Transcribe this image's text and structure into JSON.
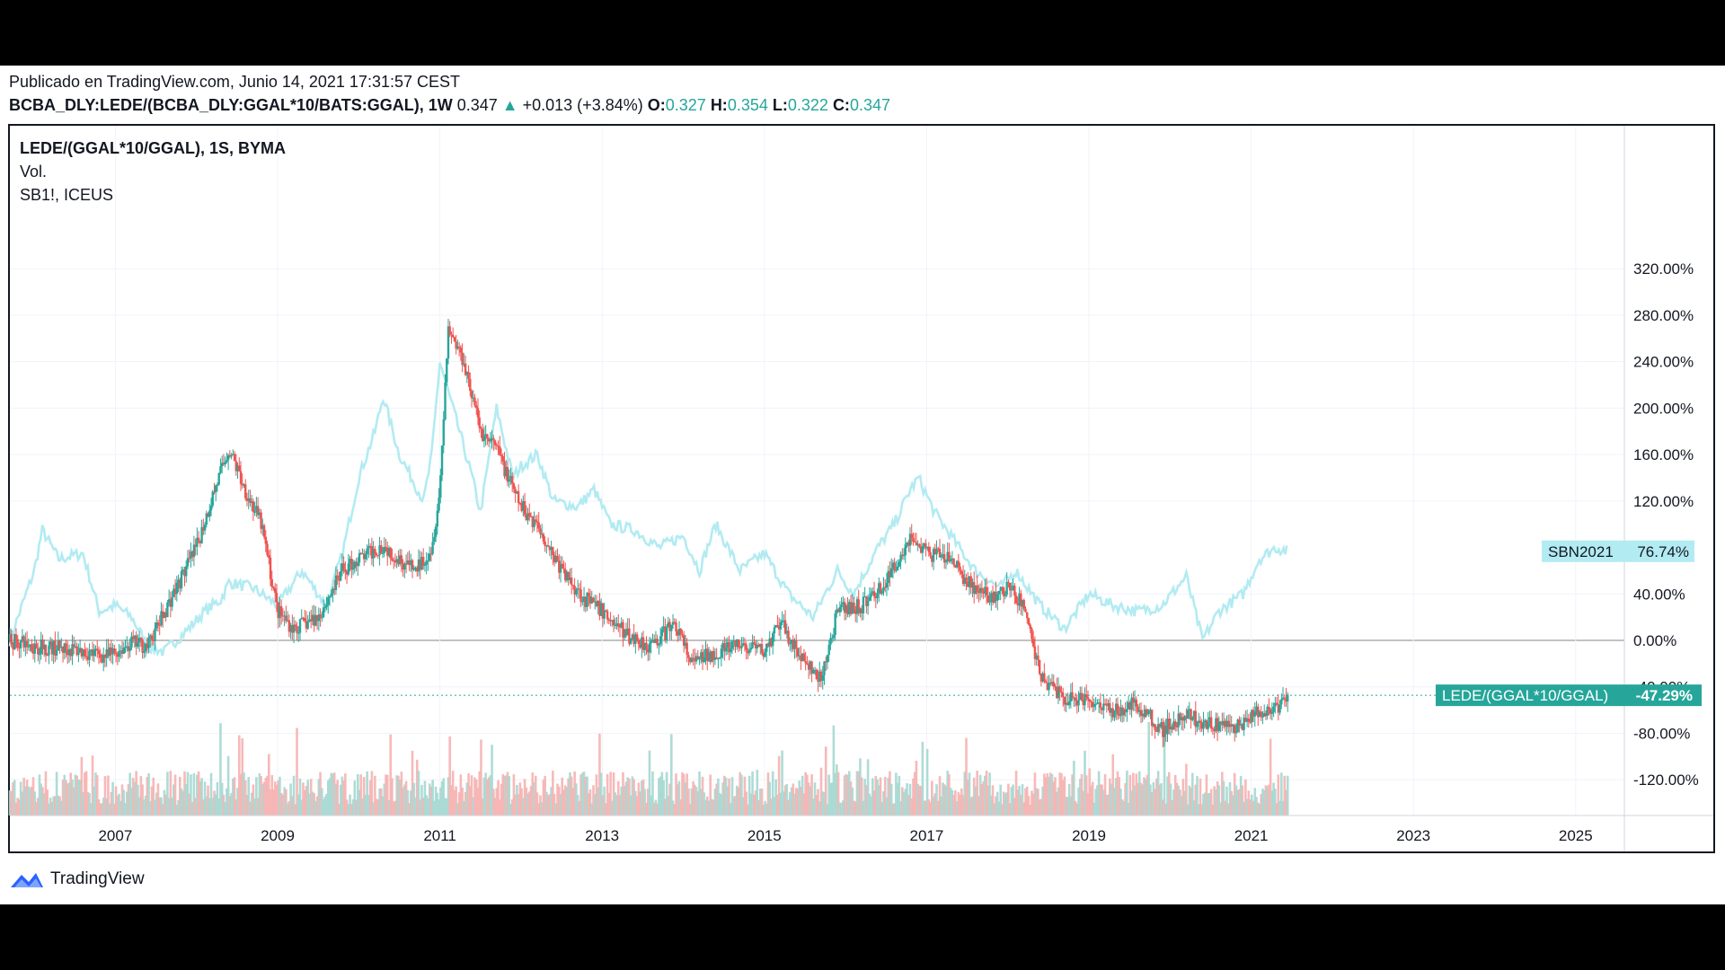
{
  "header": {
    "published": "Publicado en TradingView.com, Junio 14, 2021 17:31:57 CEST",
    "symbol": "BCBA_DLY:LEDE/(BCBA_DLY:GGAL*10/BATS:GGAL), 1W",
    "last": "0.347",
    "change": "+0.013 (+3.84%)",
    "o_label": "O:",
    "o": "0.327",
    "h_label": "H:",
    "h": "0.354",
    "l_label": "L:",
    "l": "0.322",
    "c_label": "C:",
    "c": "0.347"
  },
  "legend": {
    "line1": "LEDE/(GGAL*10/GGAL), 1S, BYMA",
    "line2": "Vol.",
    "line3": "SB1!, ICEUS"
  },
  "footer": {
    "brand": "TradingView"
  },
  "colors": {
    "up": "#26a69a",
    "down": "#ef5350",
    "compare": "#b2ebf2"
  },
  "chart_data": {
    "type": "line",
    "xlabel": "",
    "ylabel": "",
    "x_ticks": [
      "2007",
      "2009",
      "2011",
      "2013",
      "2015",
      "2017",
      "2019",
      "2021",
      "2023",
      "2025"
    ],
    "y_ticks": [
      "320.00%",
      "280.00%",
      "240.00%",
      "200.00%",
      "160.00%",
      "120.00%",
      "40.00%",
      "0.00%",
      "-40.00%",
      "-80.00%",
      "-120.00%"
    ],
    "ylim": [
      -120,
      330
    ],
    "xlim": [
      2005.7,
      2025.6
    ],
    "series": [
      {
        "name": "LEDE/(GGAL*10/GGAL)",
        "style": "candlestick",
        "last_label": "-47.29%",
        "points": [
          [
            2005.7,
            0
          ],
          [
            2006.0,
            -5
          ],
          [
            2006.5,
            -8
          ],
          [
            2006.9,
            -14
          ],
          [
            2007.2,
            -2
          ],
          [
            2007.4,
            -5
          ],
          [
            2007.7,
            38
          ],
          [
            2008.0,
            80
          ],
          [
            2008.2,
            125
          ],
          [
            2008.4,
            165
          ],
          [
            2008.6,
            130
          ],
          [
            2008.8,
            100
          ],
          [
            2009.0,
            25
          ],
          [
            2009.2,
            10
          ],
          [
            2009.5,
            20
          ],
          [
            2009.8,
            60
          ],
          [
            2010.0,
            70
          ],
          [
            2010.3,
            82
          ],
          [
            2010.5,
            70
          ],
          [
            2010.7,
            60
          ],
          [
            2010.9,
            80
          ],
          [
            2011.0,
            130
          ],
          [
            2011.1,
            270
          ],
          [
            2011.3,
            240
          ],
          [
            2011.5,
            180
          ],
          [
            2011.7,
            165
          ],
          [
            2011.9,
            130
          ],
          [
            2012.0,
            115
          ],
          [
            2012.2,
            100
          ],
          [
            2012.5,
            60
          ],
          [
            2012.8,
            35
          ],
          [
            2013.0,
            25
          ],
          [
            2013.3,
            5
          ],
          [
            2013.6,
            -5
          ],
          [
            2013.9,
            15
          ],
          [
            2014.1,
            -20
          ],
          [
            2014.4,
            -10
          ],
          [
            2014.7,
            -5
          ],
          [
            2015.0,
            -10
          ],
          [
            2015.2,
            15
          ],
          [
            2015.5,
            -20
          ],
          [
            2015.7,
            -35
          ],
          [
            2015.9,
            25
          ],
          [
            2016.2,
            30
          ],
          [
            2016.5,
            50
          ],
          [
            2016.8,
            90
          ],
          [
            2017.0,
            75
          ],
          [
            2017.3,
            70
          ],
          [
            2017.5,
            50
          ],
          [
            2017.8,
            35
          ],
          [
            2018.0,
            45
          ],
          [
            2018.2,
            30
          ],
          [
            2018.4,
            -30
          ],
          [
            2018.7,
            -50
          ],
          [
            2019.0,
            -50
          ],
          [
            2019.3,
            -60
          ],
          [
            2019.6,
            -55
          ],
          [
            2019.9,
            -77
          ],
          [
            2020.2,
            -65
          ],
          [
            2020.5,
            -72
          ],
          [
            2020.8,
            -76
          ],
          [
            2021.0,
            -65
          ],
          [
            2021.3,
            -60
          ],
          [
            2021.45,
            -47.29
          ]
        ]
      },
      {
        "name": "SBN2021",
        "style": "line",
        "last_label": "76.74%",
        "points": [
          [
            2005.7,
            0
          ],
          [
            2006.0,
            60
          ],
          [
            2006.1,
            95
          ],
          [
            2006.3,
            70
          ],
          [
            2006.6,
            75
          ],
          [
            2006.8,
            25
          ],
          [
            2007.0,
            30
          ],
          [
            2007.2,
            20
          ],
          [
            2007.4,
            -5
          ],
          [
            2007.6,
            -10
          ],
          [
            2007.9,
            10
          ],
          [
            2008.1,
            25
          ],
          [
            2008.3,
            35
          ],
          [
            2008.4,
            50
          ],
          [
            2008.7,
            45
          ],
          [
            2009.0,
            30
          ],
          [
            2009.3,
            60
          ],
          [
            2009.6,
            30
          ],
          [
            2009.8,
            75
          ],
          [
            2010.0,
            140
          ],
          [
            2010.2,
            180
          ],
          [
            2010.3,
            210
          ],
          [
            2010.5,
            160
          ],
          [
            2010.8,
            120
          ],
          [
            2010.9,
            160
          ],
          [
            2011.0,
            240
          ],
          [
            2011.2,
            190
          ],
          [
            2011.4,
            140
          ],
          [
            2011.5,
            110
          ],
          [
            2011.7,
            200
          ],
          [
            2011.9,
            140
          ],
          [
            2012.0,
            150
          ],
          [
            2012.2,
            160
          ],
          [
            2012.4,
            120
          ],
          [
            2012.7,
            115
          ],
          [
            2012.9,
            130
          ],
          [
            2013.1,
            100
          ],
          [
            2013.4,
            95
          ],
          [
            2013.7,
            80
          ],
          [
            2014.0,
            90
          ],
          [
            2014.2,
            60
          ],
          [
            2014.4,
            100
          ],
          [
            2014.7,
            60
          ],
          [
            2015.0,
            75
          ],
          [
            2015.3,
            40
          ],
          [
            2015.6,
            20
          ],
          [
            2015.9,
            60
          ],
          [
            2016.1,
            40
          ],
          [
            2016.4,
            80
          ],
          [
            2016.6,
            100
          ],
          [
            2016.8,
            130
          ],
          [
            2016.9,
            140
          ],
          [
            2017.1,
            110
          ],
          [
            2017.3,
            90
          ],
          [
            2017.6,
            60
          ],
          [
            2017.9,
            45
          ],
          [
            2018.1,
            60
          ],
          [
            2018.4,
            30
          ],
          [
            2018.7,
            10
          ],
          [
            2019.0,
            40
          ],
          [
            2019.3,
            30
          ],
          [
            2019.6,
            25
          ],
          [
            2019.9,
            30
          ],
          [
            2020.2,
            55
          ],
          [
            2020.4,
            0
          ],
          [
            2020.6,
            25
          ],
          [
            2020.9,
            40
          ],
          [
            2021.1,
            70
          ],
          [
            2021.3,
            80
          ],
          [
            2021.45,
            76.74
          ]
        ]
      },
      {
        "name": "Vol.",
        "style": "volume"
      }
    ],
    "grid": true,
    "legend": "top-left"
  }
}
